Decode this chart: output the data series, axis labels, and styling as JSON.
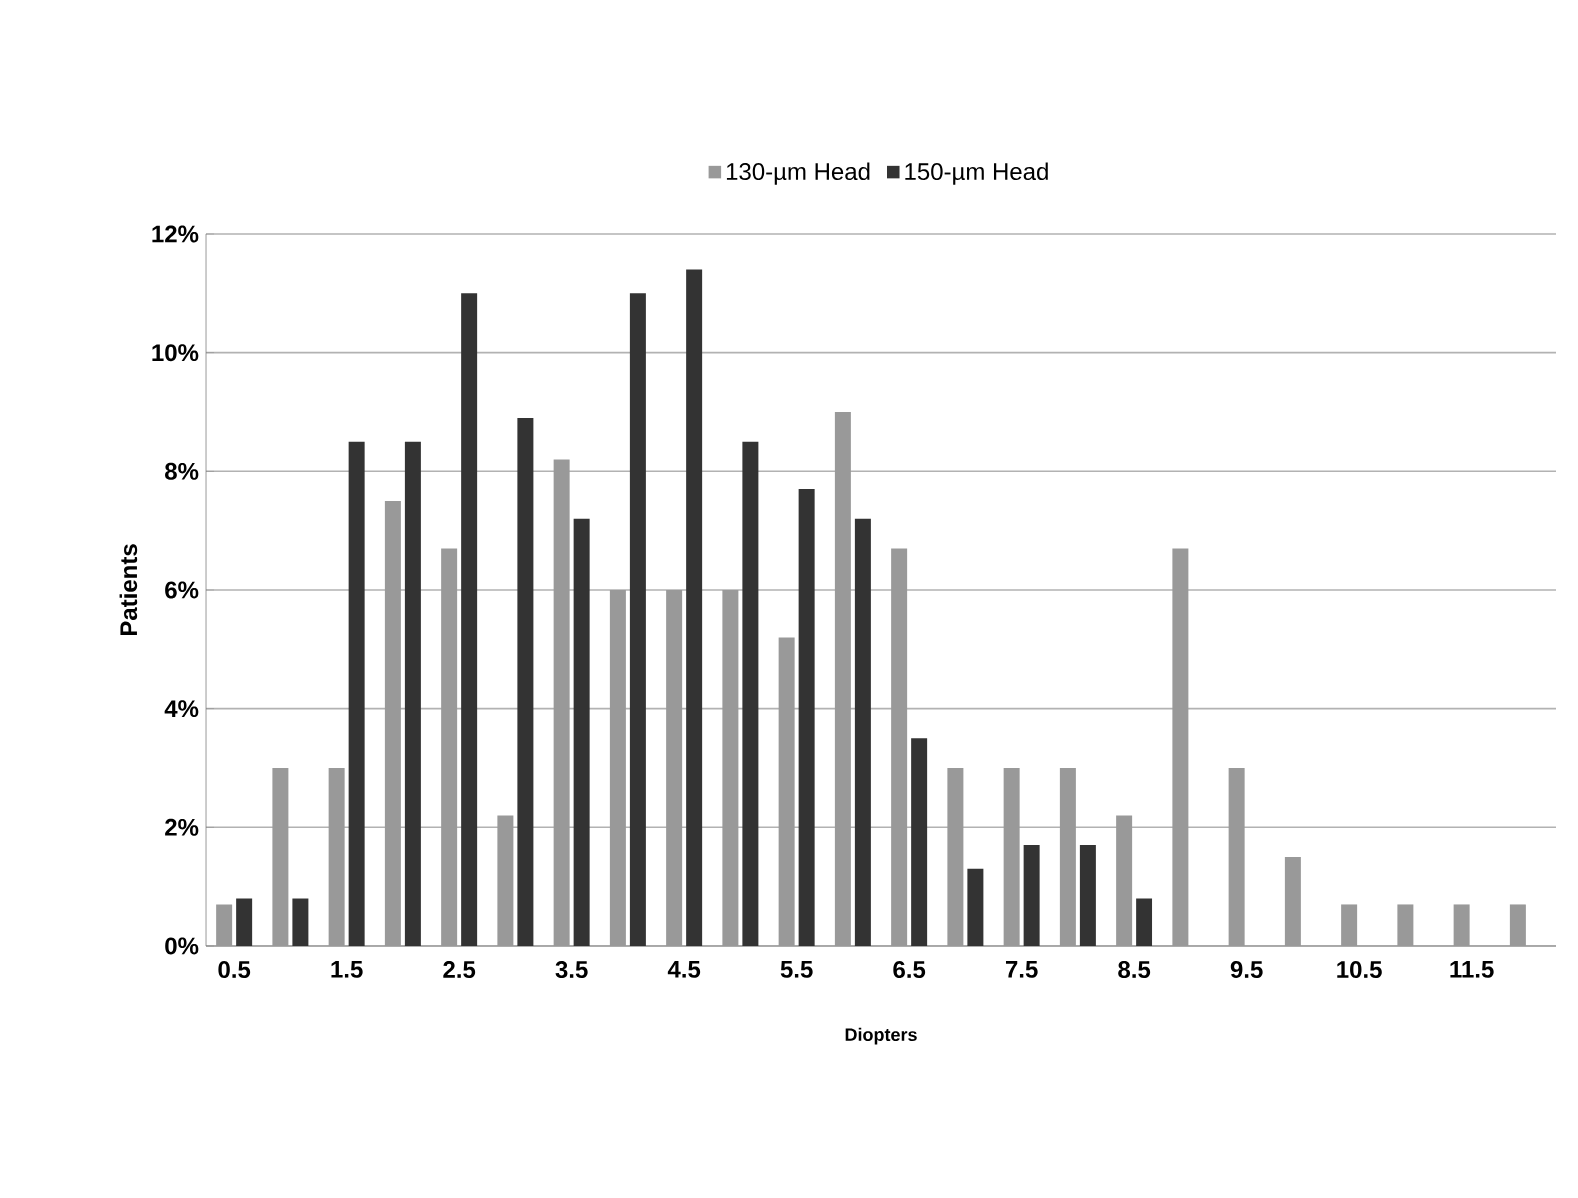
{
  "chart_data": {
    "type": "bar",
    "xlabel": "Diopters",
    "ylabel": "Patients",
    "categories": [
      "0.5",
      null,
      "1.5",
      null,
      "2.5",
      null,
      "3.5",
      null,
      "4.5",
      null,
      "5.5",
      null,
      "6.5",
      null,
      "7.5",
      null,
      "8.5",
      null,
      "9.5",
      null,
      "10.5",
      null,
      "11.5",
      null
    ],
    "series": [
      {
        "name": "130-µm Head",
        "color": "#999999",
        "values": [
          0.7,
          3.0,
          3.0,
          7.5,
          6.7,
          2.2,
          8.2,
          6.0,
          6.0,
          6.0,
          5.2,
          9.0,
          6.7,
          3.0,
          3.0,
          3.0,
          2.2,
          6.7,
          3.0,
          1.5,
          0.7,
          0.7,
          0.7,
          0.7
        ]
      },
      {
        "name": "150-µm Head",
        "color": "#333333",
        "values": [
          0.8,
          0.8,
          8.5,
          8.5,
          11.0,
          8.9,
          7.2,
          11.0,
          11.4,
          8.5,
          7.7,
          7.2,
          3.5,
          1.3,
          1.7,
          1.7,
          0.8,
          null,
          null,
          null,
          null,
          null,
          null,
          null
        ]
      }
    ],
    "ylim": [
      0,
      12
    ],
    "yticks": [
      {
        "value": 0,
        "label": "0%"
      },
      {
        "value": 2,
        "label": "2%"
      },
      {
        "value": 4,
        "label": "4%"
      },
      {
        "value": 6,
        "label": "6%"
      },
      {
        "value": 8,
        "label": "8%"
      },
      {
        "value": 10,
        "label": "10%"
      },
      {
        "value": 12,
        "label": "12%"
      }
    ],
    "grid": "y",
    "legend": "top"
  }
}
